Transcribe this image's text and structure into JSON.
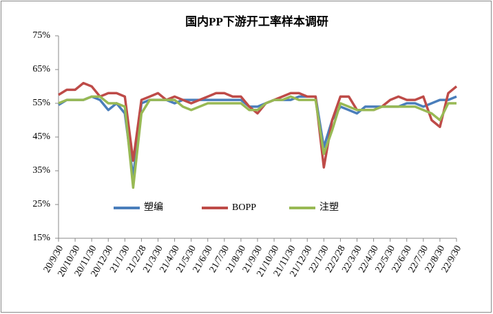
{
  "chart_data": {
    "type": "line",
    "title": "国内PP下游开工率样本调研",
    "categories": [
      "20/9/30",
      null,
      "20/10/30",
      null,
      "20/11/30",
      null,
      "20/12/30",
      null,
      "21/1/30",
      null,
      "21/2/28",
      null,
      "21/3/30",
      null,
      "21/4/30",
      null,
      "21/5/30",
      null,
      "21/6/30",
      null,
      "21/7/30",
      null,
      "21/8/30",
      null,
      "21/9/30",
      null,
      "21/10/30",
      null,
      "21/11/30",
      null,
      "21/12/30",
      null,
      "22/1/30",
      null,
      "22/2/28",
      null,
      "22/3/30",
      null,
      "22/4/30",
      null,
      "22/5/30",
      null,
      "22/6/30",
      null,
      "22/7/30",
      null,
      "22/8/30",
      null,
      "22/9/30"
    ],
    "series": [
      {
        "name": "塑编",
        "color": "#4a7ebb",
        "values": [
          54.5,
          56,
          56,
          56,
          57,
          56,
          53,
          55,
          52,
          33,
          55,
          56,
          56,
          56,
          55,
          56,
          56,
          56,
          56,
          56,
          56,
          56,
          56,
          54,
          54,
          55,
          56,
          56,
          56,
          57,
          57,
          57,
          42,
          50,
          54,
          53,
          52,
          54,
          54,
          54,
          54,
          54,
          55,
          55,
          54,
          55,
          56,
          56,
          57
        ]
      },
      {
        "name": "BOPP",
        "color": "#be4b48",
        "values": [
          57.5,
          59,
          59,
          61,
          60,
          57,
          58,
          58,
          57,
          38,
          56,
          57,
          58,
          56,
          57,
          56,
          55,
          56,
          57,
          58,
          58,
          57,
          57,
          54,
          52,
          55,
          56,
          57,
          58,
          58,
          57,
          57,
          36,
          50,
          57,
          57,
          53,
          53,
          53,
          54,
          56,
          57,
          56,
          56,
          57,
          50,
          48,
          58,
          60
        ]
      },
      {
        "name": "注塑",
        "color": "#98b954",
        "values": [
          55,
          56,
          56,
          56,
          57,
          57,
          55,
          55,
          54,
          30,
          52,
          56,
          56,
          56,
          56,
          54,
          53,
          54,
          55,
          55,
          55,
          55,
          55,
          53,
          53,
          55,
          56,
          56,
          57,
          56,
          56,
          56,
          40,
          47,
          55,
          54,
          53,
          53,
          53,
          54,
          54,
          54,
          54,
          54,
          53,
          52,
          50,
          55,
          55
        ]
      }
    ],
    "ylim": [
      15,
      75
    ],
    "yticks": [
      {
        "value": 15,
        "label": "15%"
      },
      {
        "value": 25,
        "label": "25%"
      },
      {
        "value": 35,
        "label": "35%"
      },
      {
        "value": 45,
        "label": "45%"
      },
      {
        "value": 55,
        "label": "55%"
      },
      {
        "value": 65,
        "label": "65%"
      },
      {
        "value": 75,
        "label": "75%"
      }
    ],
    "grid": false,
    "legend": "bottom"
  }
}
